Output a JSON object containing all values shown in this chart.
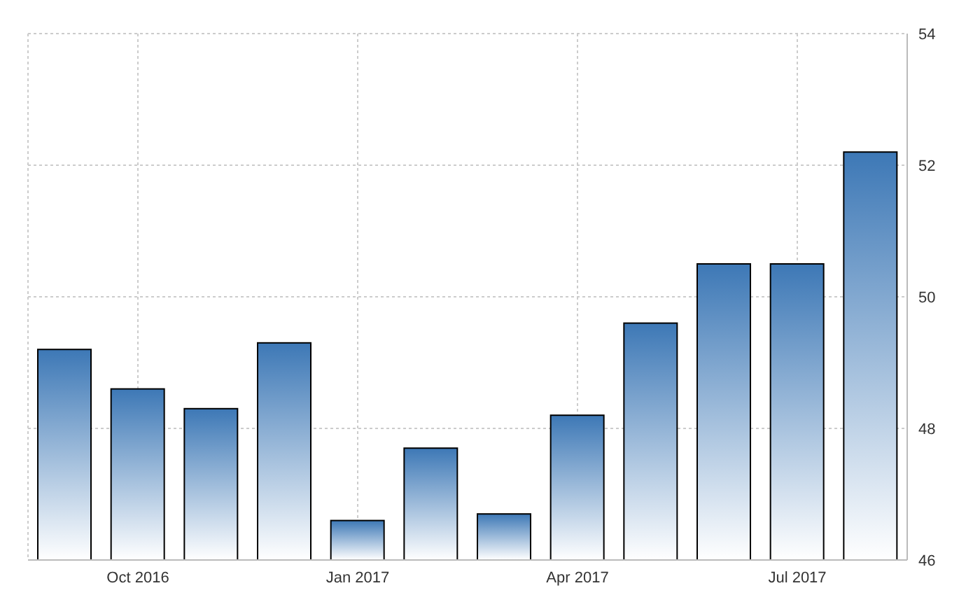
{
  "chart_data": {
    "type": "bar",
    "categories": [
      null,
      "Oct 2016",
      null,
      null,
      "Jan 2017",
      null,
      null,
      "Apr 2017",
      null,
      null,
      "Jul 2017",
      null
    ],
    "values": [
      49.2,
      48.6,
      48.3,
      49.3,
      46.6,
      47.7,
      46.7,
      48.2,
      49.6,
      50.5,
      50.5,
      52.2
    ],
    "color": "#3d78b6",
    "ylim": [
      46,
      54
    ],
    "yticks": [
      46,
      48,
      50,
      52,
      54
    ],
    "grid": true
  }
}
